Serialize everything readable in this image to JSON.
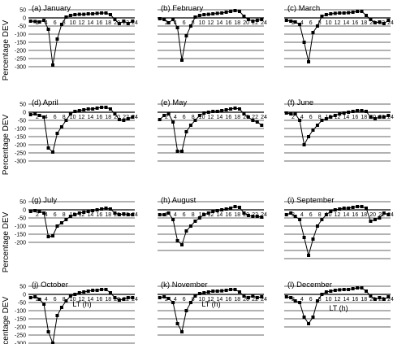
{
  "figure": {
    "ylabel": "Percentage DEV",
    "xlabel": "LT (h)",
    "x_ticks": [
      "2",
      "4",
      "6",
      "8",
      "10",
      "12",
      "14",
      "16",
      "18",
      "20",
      "22",
      "24"
    ],
    "y_ticks": [
      "50",
      "0",
      "-50",
      "-100",
      "-150",
      "-200",
      "-250",
      "-300"
    ]
  },
  "chart_data": [
    {
      "type": "scatter",
      "title": "(a) January",
      "xlim": [
        0,
        24
      ],
      "ylim": [
        -300,
        50
      ],
      "grid": true,
      "x": [
        0.5,
        1.5,
        2.5,
        3.5,
        4.5,
        5.5,
        6.5,
        7.5,
        8.5,
        9.5,
        10.5,
        11.5,
        12.5,
        13.5,
        14.5,
        15.5,
        16.5,
        17.5,
        18.5,
        19.5,
        20.5,
        21.5,
        22.5,
        23.5
      ],
      "y": [
        -20,
        -22,
        -25,
        -15,
        -70,
        -290,
        -130,
        -40,
        5,
        15,
        20,
        22,
        22,
        25,
        25,
        28,
        30,
        30,
        20,
        -10,
        -35,
        -20,
        -35,
        -20
      ]
    },
    {
      "type": "scatter",
      "title": "(b) February",
      "xlim": [
        0,
        24
      ],
      "ylim": [
        -300,
        50
      ],
      "grid": true,
      "x": [
        0.5,
        1.5,
        2.5,
        3.5,
        4.5,
        5.5,
        6.5,
        7.5,
        8.5,
        9.5,
        10.5,
        11.5,
        12.5,
        13.5,
        14.5,
        15.5,
        16.5,
        17.5,
        18.5,
        19.5,
        20.5,
        21.5,
        22.5,
        23.5
      ],
      "y": [
        -5,
        -10,
        -30,
        -10,
        -60,
        -260,
        -110,
        -50,
        5,
        15,
        20,
        22,
        25,
        28,
        30,
        35,
        40,
        45,
        40,
        10,
        -10,
        -20,
        -15,
        -10
      ]
    },
    {
      "type": "scatter",
      "title": "(c) March",
      "xlim": [
        0,
        24
      ],
      "ylim": [
        -300,
        50
      ],
      "grid": true,
      "x": [
        0.5,
        1.5,
        2.5,
        3.5,
        4.5,
        5.5,
        6.5,
        7.5,
        8.5,
        9.5,
        10.5,
        11.5,
        12.5,
        13.5,
        14.5,
        15.5,
        16.5,
        17.5,
        18.5,
        19.5,
        20.5,
        21.5,
        22.5,
        23.5
      ],
      "y": [
        -15,
        -20,
        -25,
        -40,
        -150,
        -270,
        -90,
        -50,
        10,
        20,
        25,
        28,
        30,
        30,
        32,
        35,
        40,
        40,
        15,
        -10,
        -30,
        -25,
        -35,
        -15
      ]
    },
    {
      "type": "scatter",
      "title": "(d) April",
      "xlim": [
        0,
        24
      ],
      "ylim": [
        -300,
        50
      ],
      "grid": true,
      "x": [
        0.5,
        1.5,
        2.5,
        3.5,
        4.5,
        5.5,
        6.5,
        7.5,
        8.5,
        9.5,
        10.5,
        11.5,
        12.5,
        13.5,
        14.5,
        15.5,
        16.5,
        17.5,
        18.5,
        19.5,
        20.5,
        21.5,
        22.5,
        23.5
      ],
      "y": [
        -15,
        -10,
        -20,
        -30,
        -220,
        -245,
        -130,
        -90,
        -50,
        -10,
        5,
        10,
        15,
        20,
        20,
        25,
        30,
        30,
        20,
        -10,
        -45,
        -50,
        -40,
        -30
      ]
    },
    {
      "type": "scatter",
      "title": "(e) May",
      "xlim": [
        0,
        24
      ],
      "ylim": [
        -300,
        50
      ],
      "grid": true,
      "x": [
        0.5,
        1.5,
        2.5,
        3.5,
        4.5,
        5.5,
        6.5,
        7.5,
        8.5,
        9.5,
        10.5,
        11.5,
        12.5,
        13.5,
        14.5,
        15.5,
        16.5,
        17.5,
        18.5,
        19.5,
        20.5,
        21.5,
        22.5,
        23.5
      ],
      "y": [
        -45,
        -20,
        -10,
        -60,
        -240,
        -240,
        -120,
        -80,
        -50,
        -20,
        -5,
        0,
        5,
        5,
        10,
        15,
        20,
        25,
        20,
        -10,
        -30,
        -50,
        -60,
        -80
      ]
    },
    {
      "type": "scatter",
      "title": "(f) June",
      "xlim": [
        0,
        24
      ],
      "ylim": [
        -300,
        50
      ],
      "grid": true,
      "x": [
        0.5,
        1.5,
        2.5,
        3.5,
        4.5,
        5.5,
        6.5,
        7.5,
        8.5,
        9.5,
        10.5,
        11.5,
        12.5,
        13.5,
        14.5,
        15.5,
        16.5,
        17.5,
        18.5,
        19.5,
        20.5,
        21.5,
        22.5,
        23.5
      ],
      "y": [
        -5,
        -10,
        -10,
        -50,
        -200,
        -150,
        -110,
        -80,
        -50,
        -40,
        -30,
        -20,
        -10,
        -5,
        0,
        5,
        10,
        10,
        5,
        -30,
        -40,
        -30,
        -30,
        -20
      ]
    },
    {
      "type": "scatter",
      "title": "(g) July",
      "xlim": [
        0,
        24
      ],
      "ylim": [
        -200,
        50
      ],
      "grid": true,
      "x": [
        0.5,
        1.5,
        2.5,
        3.5,
        4.5,
        5.5,
        6.5,
        7.5,
        8.5,
        9.5,
        10.5,
        11.5,
        12.5,
        13.5,
        14.5,
        15.5,
        16.5,
        17.5,
        18.5,
        19.5,
        20.5,
        21.5,
        22.5,
        23.5
      ],
      "y": [
        -10,
        -5,
        -10,
        -20,
        -165,
        -160,
        -100,
        -80,
        -60,
        -40,
        -30,
        -20,
        -15,
        -10,
        -5,
        0,
        5,
        10,
        5,
        -20,
        -30,
        -25,
        -30,
        -30
      ]
    },
    {
      "type": "scatter",
      "title": "(h) August",
      "xlim": [
        0,
        24
      ],
      "ylim": [
        -250,
        50
      ],
      "grid": true,
      "x": [
        0.5,
        1.5,
        2.5,
        3.5,
        4.5,
        5.5,
        6.5,
        7.5,
        8.5,
        9.5,
        10.5,
        11.5,
        12.5,
        13.5,
        14.5,
        15.5,
        16.5,
        17.5,
        18.5,
        19.5,
        20.5,
        21.5,
        22.5,
        23.5
      ],
      "y": [
        -30,
        -30,
        -20,
        -60,
        -190,
        -215,
        -130,
        -100,
        -70,
        -50,
        -30,
        -20,
        -10,
        -5,
        0,
        5,
        10,
        20,
        15,
        -20,
        -35,
        -40,
        -40,
        -45
      ]
    },
    {
      "type": "scatter",
      "title": "(i) September",
      "xlim": [
        0,
        24
      ],
      "ylim": [
        -300,
        50
      ],
      "grid": true,
      "x": [
        0.5,
        1.5,
        2.5,
        3.5,
        4.5,
        5.5,
        6.5,
        7.5,
        8.5,
        9.5,
        10.5,
        11.5,
        12.5,
        13.5,
        14.5,
        15.5,
        16.5,
        17.5,
        18.5,
        19.5,
        20.5,
        21.5,
        22.5,
        23.5
      ],
      "y": [
        -30,
        -20,
        -40,
        -60,
        -170,
        -280,
        -180,
        -100,
        -60,
        -30,
        -10,
        0,
        5,
        10,
        10,
        15,
        20,
        20,
        10,
        -70,
        -60,
        -50,
        -20,
        -30
      ]
    },
    {
      "type": "scatter",
      "title": "(j) October",
      "xlim": [
        0,
        24
      ],
      "ylim": [
        -300,
        50
      ],
      "grid": true,
      "x": [
        0.5,
        1.5,
        2.5,
        3.5,
        4.5,
        5.5,
        6.5,
        7.5,
        8.5,
        9.5,
        10.5,
        11.5,
        12.5,
        13.5,
        14.5,
        15.5,
        16.5,
        17.5,
        18.5,
        19.5,
        20.5,
        21.5,
        22.5,
        23.5
      ],
      "y": [
        -20,
        -15,
        -30,
        -60,
        -230,
        -300,
        -130,
        -80,
        -40,
        -10,
        0,
        10,
        15,
        20,
        25,
        25,
        30,
        30,
        10,
        -20,
        -35,
        -30,
        -20,
        -20
      ]
    },
    {
      "type": "scatter",
      "title": "(k) November",
      "xlim": [
        0,
        24
      ],
      "ylim": [
        -250,
        50
      ],
      "grid": true,
      "x": [
        0.5,
        1.5,
        2.5,
        3.5,
        4.5,
        5.5,
        6.5,
        7.5,
        8.5,
        9.5,
        10.5,
        11.5,
        12.5,
        13.5,
        14.5,
        15.5,
        16.5,
        17.5,
        18.5,
        19.5,
        20.5,
        21.5,
        22.5,
        23.5
      ],
      "y": [
        -20,
        -15,
        -25,
        -50,
        -180,
        -230,
        -100,
        -50,
        -10,
        5,
        10,
        15,
        20,
        20,
        22,
        25,
        30,
        30,
        15,
        -10,
        -20,
        -10,
        -20,
        -15
      ]
    },
    {
      "type": "scatter",
      "title": "(l) December",
      "xlim": [
        0,
        24
      ],
      "ylim": [
        -200,
        50
      ],
      "grid": true,
      "x": [
        0.5,
        1.5,
        2.5,
        3.5,
        4.5,
        5.5,
        6.5,
        7.5,
        8.5,
        9.5,
        10.5,
        11.5,
        12.5,
        13.5,
        14.5,
        15.5,
        16.5,
        17.5,
        18.5,
        19.5,
        20.5,
        21.5,
        22.5,
        23.5
      ],
      "y": [
        -15,
        -20,
        -40,
        -50,
        -140,
        -180,
        -140,
        -40,
        0,
        15,
        20,
        25,
        28,
        30,
        30,
        35,
        40,
        40,
        20,
        -10,
        -30,
        -20,
        -30,
        -15
      ]
    }
  ]
}
